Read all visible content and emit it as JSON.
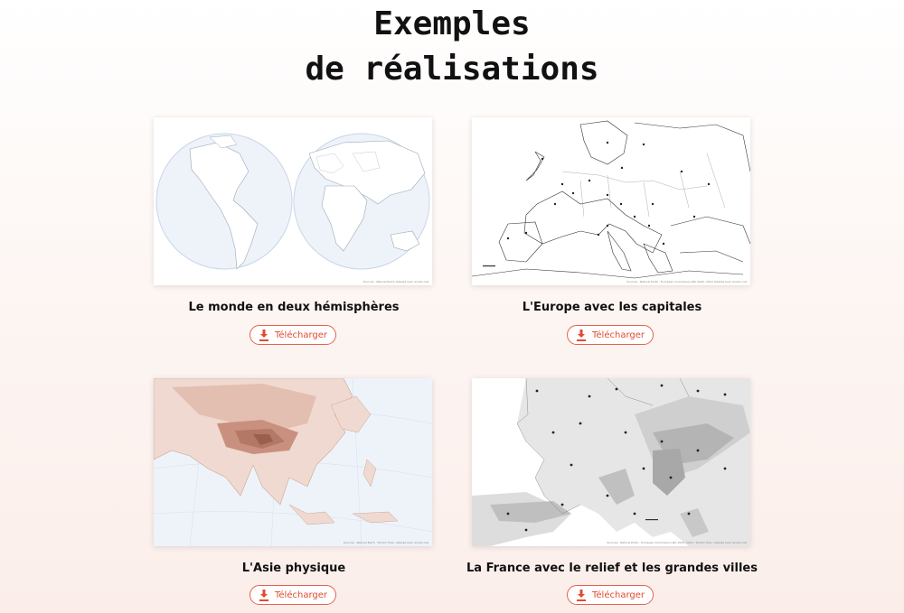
{
  "heading": {
    "line1": "Exemples",
    "line2": "de réalisations"
  },
  "cards": [
    {
      "caption": "Le monde en deux hémisphères",
      "button": "Télécharger",
      "icon": "download-icon",
      "source": "Sources : Natural Earth. Réalisé avec Gcarto.net"
    },
    {
      "caption": "L'Europe avec les capitales",
      "button": "Télécharger",
      "icon": "download-icon",
      "source": "Sources : Natural Earth ; European Commission JRC 2020, 2019. Réalisé avec Gcarto.net"
    },
    {
      "caption": "L'Asie physique",
      "button": "Télécharger",
      "icon": "download-icon",
      "source": "Sources : Natural Earth ; Terrain Tiles ; Réalisé avec Gcarto.net"
    },
    {
      "caption": "La France avec le relief et les grandes villes",
      "button": "Télécharger",
      "icon": "download-icon",
      "source": "Sources : Natural Earth ; European Commission JRC 2020, 2019 ; Terrain Tiles ; Réalisé avec Gcarto.net"
    }
  ],
  "colors": {
    "accent": "#e24a2f",
    "relief_asia": "#c9907f",
    "relief_france": "#9a9a9a"
  }
}
